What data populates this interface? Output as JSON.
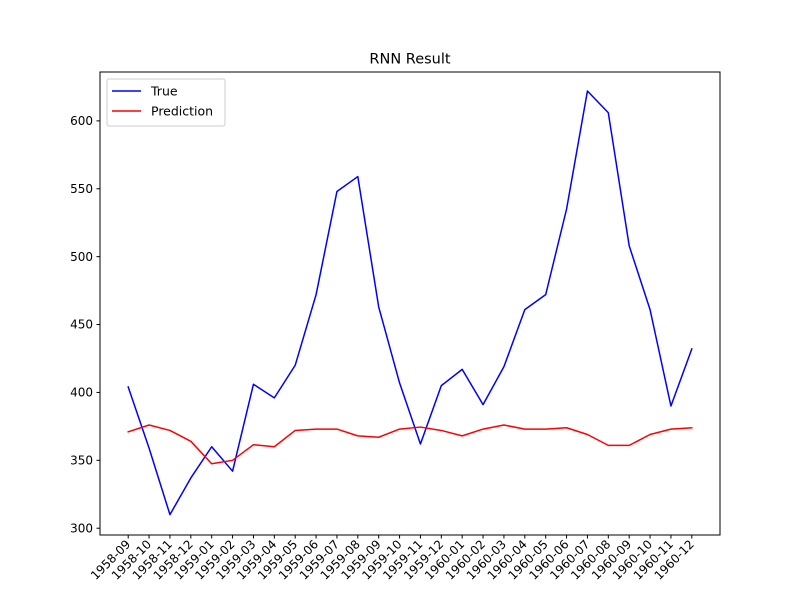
{
  "chart_data": {
    "type": "line",
    "title": "RNN Result",
    "xlabel": "",
    "ylabel": "",
    "categories": [
      "1958-09",
      "1958-10",
      "1958-11",
      "1958-12",
      "1959-01",
      "1959-02",
      "1959-03",
      "1959-04",
      "1959-05",
      "1959-06",
      "1959-07",
      "1959-08",
      "1959-09",
      "1959-10",
      "1959-11",
      "1959-12",
      "1960-01",
      "1960-02",
      "1960-03",
      "1960-04",
      "1960-05",
      "1960-06",
      "1960-07",
      "1960-08",
      "1960-09",
      "1960-10",
      "1960-11",
      "1960-12"
    ],
    "series": [
      {
        "name": "True",
        "color": "#0000ff",
        "values": [
          404,
          359,
          310,
          337,
          360,
          342,
          406,
          396,
          420,
          472,
          548,
          559,
          463,
          407,
          362,
          405,
          417,
          391,
          419,
          461,
          472,
          535,
          622,
          606,
          508,
          461,
          390,
          432
        ]
      },
      {
        "name": "Prediction",
        "color": "#ff0000",
        "values": [
          371,
          376,
          372,
          364,
          347.5,
          350,
          361.5,
          360,
          372,
          373,
          373,
          368,
          367,
          373,
          374.5,
          372,
          368,
          373,
          376,
          373,
          373,
          374,
          369,
          361,
          361,
          369,
          373,
          374
        ]
      }
    ],
    "ylim": [
      295,
      636
    ],
    "yticks": [
      300,
      350,
      400,
      450,
      500,
      550,
      600
    ],
    "grid": false,
    "legend_position": "top-left"
  }
}
